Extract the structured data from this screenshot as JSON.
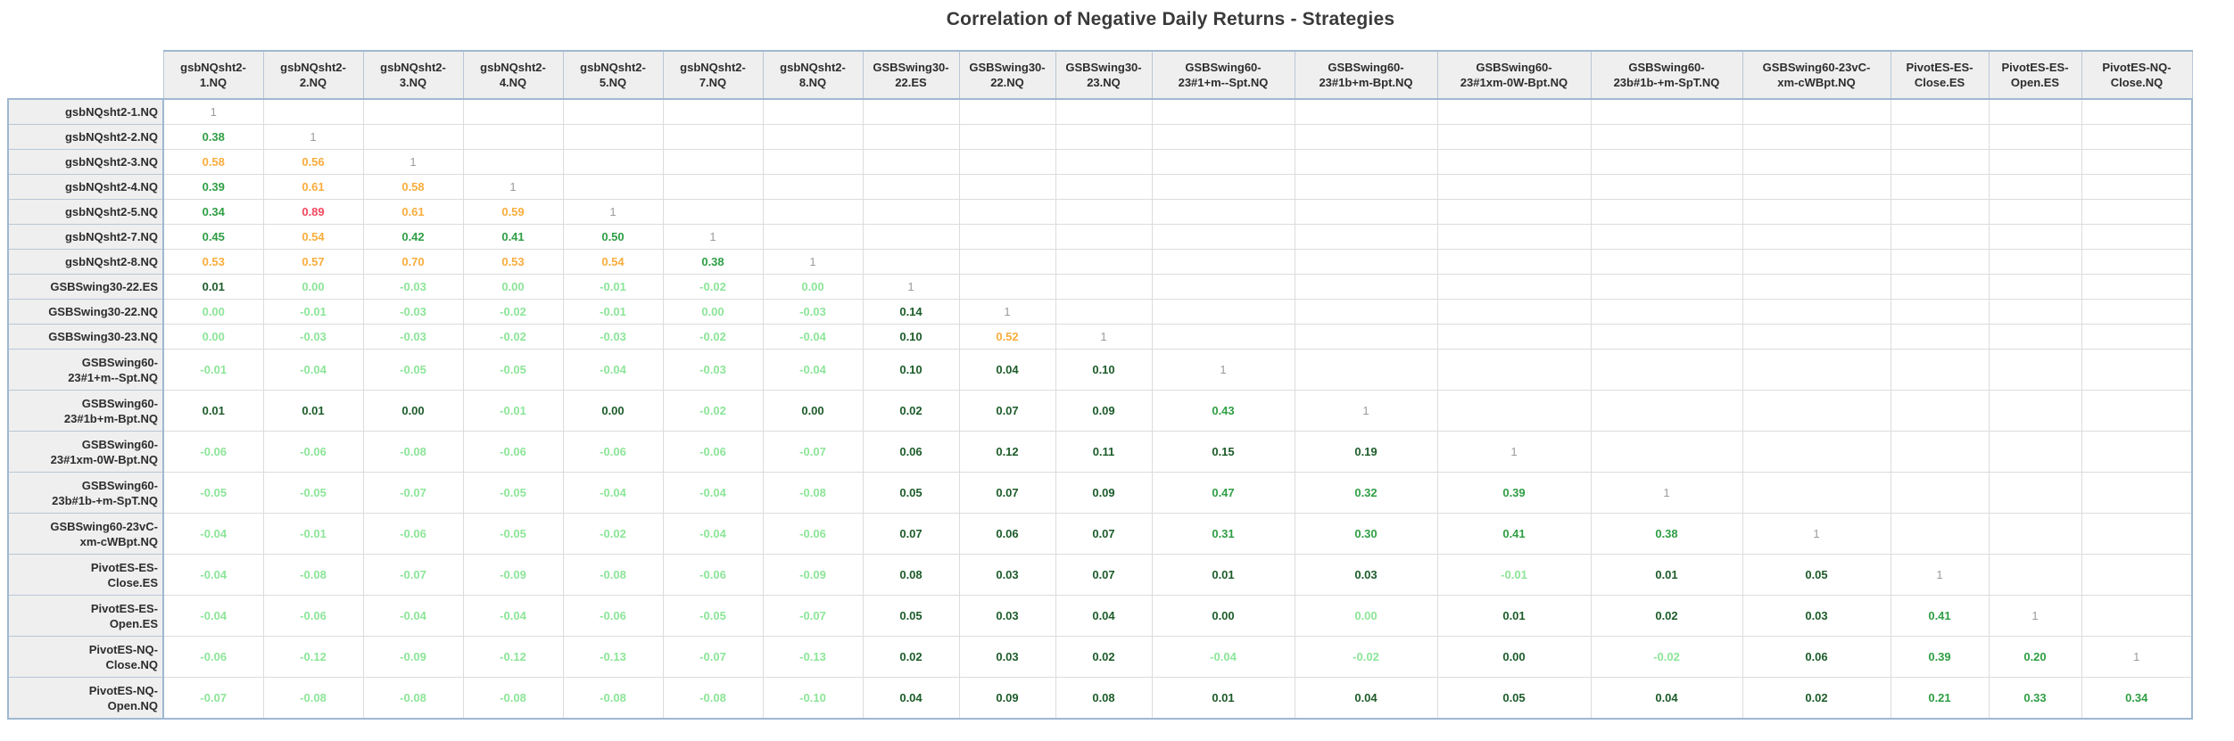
{
  "title": "Correlation of Negative Daily Returns - Strategies",
  "palette": {
    "light_green": "#8ce598",
    "dark_green": "#1d5c2a",
    "green": "#2f9e44",
    "orange": "#f9ad3d",
    "red": "#f4495f",
    "diagonal_gray": "#9b9b9b",
    "header_bg": "#efefef",
    "frame_blue": "#9fb8d1"
  },
  "chart_data": {
    "type": "heatmap",
    "title": "Correlation of Negative Daily Returns - Strategies",
    "legend_position": "none",
    "grid": true,
    "columns": [
      [
        "gsbNQsht2-",
        "1.NQ"
      ],
      [
        "gsbNQsht2-",
        "2.NQ"
      ],
      [
        "gsbNQsht2-",
        "3.NQ"
      ],
      [
        "gsbNQsht2-",
        "4.NQ"
      ],
      [
        "gsbNQsht2-",
        "5.NQ"
      ],
      [
        "gsbNQsht2-",
        "7.NQ"
      ],
      [
        "gsbNQsht2-",
        "8.NQ"
      ],
      [
        "GSBSwing30-",
        "22.ES"
      ],
      [
        "GSBSwing30-",
        "22.NQ"
      ],
      [
        "GSBSwing30-",
        "23.NQ"
      ],
      [
        "GSBSwing60-",
        "23#1+m--Spt.NQ"
      ],
      [
        "GSBSwing60-",
        "23#1b+m-Bpt.NQ"
      ],
      [
        "GSBSwing60-",
        "23#1xm-0W-Bpt.NQ"
      ],
      [
        "GSBSwing60-",
        "23b#1b-+m-SpT.NQ"
      ],
      [
        "GSBSwing60-23vC-",
        "xm-cWBpt.NQ"
      ],
      [
        "PivotES-ES-",
        "Close.ES"
      ],
      [
        "PivotES-ES-",
        "Open.ES"
      ],
      [
        "PivotES-NQ-",
        "Close.NQ"
      ]
    ],
    "rows": [
      {
        "label": [
          "gsbNQsht2-1.NQ"
        ],
        "cells": [
          [
            "1",
            "diag"
          ]
        ]
      },
      {
        "label": [
          "gsbNQsht2-2.NQ"
        ],
        "cells": [
          [
            "0.38",
            "green"
          ],
          [
            "1",
            "diag"
          ]
        ]
      },
      {
        "label": [
          "gsbNQsht2-3.NQ"
        ],
        "cells": [
          [
            "0.58",
            "orange"
          ],
          [
            "0.56",
            "orange"
          ],
          [
            "1",
            "diag"
          ]
        ]
      },
      {
        "label": [
          "gsbNQsht2-4.NQ"
        ],
        "cells": [
          [
            "0.39",
            "green"
          ],
          [
            "0.61",
            "orange"
          ],
          [
            "0.58",
            "orange"
          ],
          [
            "1",
            "diag"
          ]
        ]
      },
      {
        "label": [
          "gsbNQsht2-5.NQ"
        ],
        "cells": [
          [
            "0.34",
            "green"
          ],
          [
            "0.89",
            "red"
          ],
          [
            "0.61",
            "orange"
          ],
          [
            "0.59",
            "orange"
          ],
          [
            "1",
            "diag"
          ]
        ]
      },
      {
        "label": [
          "gsbNQsht2-7.NQ"
        ],
        "cells": [
          [
            "0.45",
            "green"
          ],
          [
            "0.54",
            "orange"
          ],
          [
            "0.42",
            "green"
          ],
          [
            "0.41",
            "green"
          ],
          [
            "0.50",
            "green"
          ],
          [
            "1",
            "diag"
          ]
        ]
      },
      {
        "label": [
          "gsbNQsht2-8.NQ"
        ],
        "cells": [
          [
            "0.53",
            "orange"
          ],
          [
            "0.57",
            "orange"
          ],
          [
            "0.70",
            "orange"
          ],
          [
            "0.53",
            "orange"
          ],
          [
            "0.54",
            "orange"
          ],
          [
            "0.38",
            "green"
          ],
          [
            "1",
            "diag"
          ]
        ]
      },
      {
        "label": [
          "GSBSwing30-22.ES"
        ],
        "cells": [
          [
            "0.01",
            "dark"
          ],
          [
            "0.00",
            "light"
          ],
          [
            "-0.03",
            "light"
          ],
          [
            "0.00",
            "light"
          ],
          [
            "-0.01",
            "light"
          ],
          [
            "-0.02",
            "light"
          ],
          [
            "0.00",
            "light"
          ],
          [
            "1",
            "diag"
          ]
        ]
      },
      {
        "label": [
          "GSBSwing30-22.NQ"
        ],
        "cells": [
          [
            "0.00",
            "light"
          ],
          [
            "-0.01",
            "light"
          ],
          [
            "-0.03",
            "light"
          ],
          [
            "-0.02",
            "light"
          ],
          [
            "-0.01",
            "light"
          ],
          [
            "0.00",
            "light"
          ],
          [
            "-0.03",
            "light"
          ],
          [
            "0.14",
            "dark"
          ],
          [
            "1",
            "diag"
          ]
        ]
      },
      {
        "label": [
          "GSBSwing30-23.NQ"
        ],
        "cells": [
          [
            "0.00",
            "light"
          ],
          [
            "-0.03",
            "light"
          ],
          [
            "-0.03",
            "light"
          ],
          [
            "-0.02",
            "light"
          ],
          [
            "-0.03",
            "light"
          ],
          [
            "-0.02",
            "light"
          ],
          [
            "-0.04",
            "light"
          ],
          [
            "0.10",
            "dark"
          ],
          [
            "0.52",
            "orange"
          ],
          [
            "1",
            "diag"
          ]
        ]
      },
      {
        "label": [
          "GSBSwing60-",
          "23#1+m--Spt.NQ"
        ],
        "cells": [
          [
            "-0.01",
            "light"
          ],
          [
            "-0.04",
            "light"
          ],
          [
            "-0.05",
            "light"
          ],
          [
            "-0.05",
            "light"
          ],
          [
            "-0.04",
            "light"
          ],
          [
            "-0.03",
            "light"
          ],
          [
            "-0.04",
            "light"
          ],
          [
            "0.10",
            "dark"
          ],
          [
            "0.04",
            "dark"
          ],
          [
            "0.10",
            "dark"
          ],
          [
            "1",
            "diag"
          ]
        ]
      },
      {
        "label": [
          "GSBSwing60-",
          "23#1b+m-Bpt.NQ"
        ],
        "cells": [
          [
            "0.01",
            "dark"
          ],
          [
            "0.01",
            "dark"
          ],
          [
            "0.00",
            "dark"
          ],
          [
            "-0.01",
            "light"
          ],
          [
            "0.00",
            "dark"
          ],
          [
            "-0.02",
            "light"
          ],
          [
            "0.00",
            "dark"
          ],
          [
            "0.02",
            "dark"
          ],
          [
            "0.07",
            "dark"
          ],
          [
            "0.09",
            "dark"
          ],
          [
            "0.43",
            "green"
          ],
          [
            "1",
            "diag"
          ]
        ]
      },
      {
        "label": [
          "GSBSwing60-",
          "23#1xm-0W-Bpt.NQ"
        ],
        "cells": [
          [
            "-0.06",
            "light"
          ],
          [
            "-0.06",
            "light"
          ],
          [
            "-0.08",
            "light"
          ],
          [
            "-0.06",
            "light"
          ],
          [
            "-0.06",
            "light"
          ],
          [
            "-0.06",
            "light"
          ],
          [
            "-0.07",
            "light"
          ],
          [
            "0.06",
            "dark"
          ],
          [
            "0.12",
            "dark"
          ],
          [
            "0.11",
            "dark"
          ],
          [
            "0.15",
            "dark"
          ],
          [
            "0.19",
            "dark"
          ],
          [
            "1",
            "diag"
          ]
        ]
      },
      {
        "label": [
          "GSBSwing60-",
          "23b#1b-+m-SpT.NQ"
        ],
        "cells": [
          [
            "-0.05",
            "light"
          ],
          [
            "-0.05",
            "light"
          ],
          [
            "-0.07",
            "light"
          ],
          [
            "-0.05",
            "light"
          ],
          [
            "-0.04",
            "light"
          ],
          [
            "-0.04",
            "light"
          ],
          [
            "-0.08",
            "light"
          ],
          [
            "0.05",
            "dark"
          ],
          [
            "0.07",
            "dark"
          ],
          [
            "0.09",
            "dark"
          ],
          [
            "0.47",
            "green"
          ],
          [
            "0.32",
            "green"
          ],
          [
            "0.39",
            "green"
          ],
          [
            "1",
            "diag"
          ]
        ]
      },
      {
        "label": [
          "GSBSwing60-23vC-",
          "xm-cWBpt.NQ"
        ],
        "cells": [
          [
            "-0.04",
            "light"
          ],
          [
            "-0.01",
            "light"
          ],
          [
            "-0.06",
            "light"
          ],
          [
            "-0.05",
            "light"
          ],
          [
            "-0.02",
            "light"
          ],
          [
            "-0.04",
            "light"
          ],
          [
            "-0.06",
            "light"
          ],
          [
            "0.07",
            "dark"
          ],
          [
            "0.06",
            "dark"
          ],
          [
            "0.07",
            "dark"
          ],
          [
            "0.31",
            "green"
          ],
          [
            "0.30",
            "green"
          ],
          [
            "0.41",
            "green"
          ],
          [
            "0.38",
            "green"
          ],
          [
            "1",
            "diag"
          ]
        ]
      },
      {
        "label": [
          "PivotES-ES-",
          "Close.ES"
        ],
        "cells": [
          [
            "-0.04",
            "light"
          ],
          [
            "-0.08",
            "light"
          ],
          [
            "-0.07",
            "light"
          ],
          [
            "-0.09",
            "light"
          ],
          [
            "-0.08",
            "light"
          ],
          [
            "-0.06",
            "light"
          ],
          [
            "-0.09",
            "light"
          ],
          [
            "0.08",
            "dark"
          ],
          [
            "0.03",
            "dark"
          ],
          [
            "0.07",
            "dark"
          ],
          [
            "0.01",
            "dark"
          ],
          [
            "0.03",
            "dark"
          ],
          [
            "-0.01",
            "light"
          ],
          [
            "0.01",
            "dark"
          ],
          [
            "0.05",
            "dark"
          ],
          [
            "1",
            "diag"
          ]
        ]
      },
      {
        "label": [
          "PivotES-ES-",
          "Open.ES"
        ],
        "cells": [
          [
            "-0.04",
            "light"
          ],
          [
            "-0.06",
            "light"
          ],
          [
            "-0.04",
            "light"
          ],
          [
            "-0.04",
            "light"
          ],
          [
            "-0.06",
            "light"
          ],
          [
            "-0.05",
            "light"
          ],
          [
            "-0.07",
            "light"
          ],
          [
            "0.05",
            "dark"
          ],
          [
            "0.03",
            "dark"
          ],
          [
            "0.04",
            "dark"
          ],
          [
            "0.00",
            "dark"
          ],
          [
            "0.00",
            "light"
          ],
          [
            "0.01",
            "dark"
          ],
          [
            "0.02",
            "dark"
          ],
          [
            "0.03",
            "dark"
          ],
          [
            "0.41",
            "green"
          ],
          [
            "1",
            "diag"
          ]
        ]
      },
      {
        "label": [
          "PivotES-NQ-",
          "Close.NQ"
        ],
        "cells": [
          [
            "-0.06",
            "light"
          ],
          [
            "-0.12",
            "light"
          ],
          [
            "-0.09",
            "light"
          ],
          [
            "-0.12",
            "light"
          ],
          [
            "-0.13",
            "light"
          ],
          [
            "-0.07",
            "light"
          ],
          [
            "-0.13",
            "light"
          ],
          [
            "0.02",
            "dark"
          ],
          [
            "0.03",
            "dark"
          ],
          [
            "0.02",
            "dark"
          ],
          [
            "-0.04",
            "light"
          ],
          [
            "-0.02",
            "light"
          ],
          [
            "0.00",
            "dark"
          ],
          [
            "-0.02",
            "light"
          ],
          [
            "0.06",
            "dark"
          ],
          [
            "0.39",
            "green"
          ],
          [
            "0.20",
            "green"
          ],
          [
            "1",
            "diag"
          ]
        ]
      },
      {
        "label": [
          "PivotES-NQ-",
          "Open.NQ"
        ],
        "cells": [
          [
            "-0.07",
            "light"
          ],
          [
            "-0.08",
            "light"
          ],
          [
            "-0.08",
            "light"
          ],
          [
            "-0.08",
            "light"
          ],
          [
            "-0.08",
            "light"
          ],
          [
            "-0.08",
            "light"
          ],
          [
            "-0.10",
            "light"
          ],
          [
            "0.04",
            "dark"
          ],
          [
            "0.09",
            "dark"
          ],
          [
            "0.08",
            "dark"
          ],
          [
            "0.01",
            "dark"
          ],
          [
            "0.04",
            "dark"
          ],
          [
            "0.05",
            "dark"
          ],
          [
            "0.04",
            "dark"
          ],
          [
            "0.02",
            "dark"
          ],
          [
            "0.21",
            "green"
          ],
          [
            "0.33",
            "green"
          ],
          [
            "0.34",
            "green"
          ]
        ]
      }
    ]
  }
}
